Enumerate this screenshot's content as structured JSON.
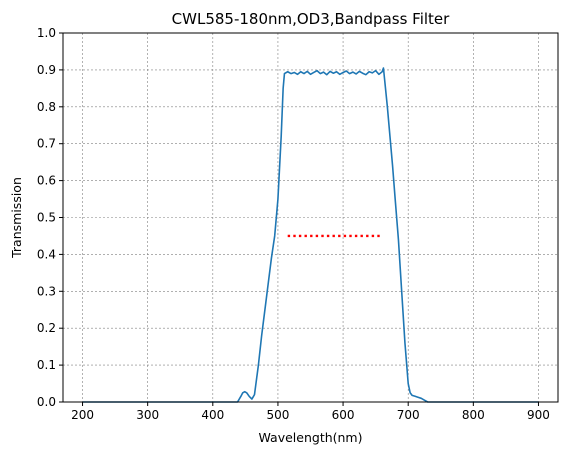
{
  "chart_data": {
    "type": "line",
    "title": "CWL585-180nm,OD3,Bandpass Filter",
    "xlabel": "Wavelength(nm)",
    "ylabel": "Transmission",
    "xlim": [
      170,
      930
    ],
    "ylim": [
      0,
      1.0
    ],
    "xticks": [
      200,
      300,
      400,
      500,
      600,
      700,
      800,
      900
    ],
    "yticks": [
      0,
      0.1,
      0.2,
      0.3,
      0.4,
      0.5,
      0.6,
      0.7,
      0.8,
      0.9,
      1.0
    ],
    "grid": true,
    "legend": "none",
    "series": [
      {
        "color": "#1f77b4",
        "line_style": "solid",
        "x": [
          200,
          300,
          400,
          438,
          443,
          446,
          449,
          452,
          456,
          460,
          464,
          467,
          470,
          475,
          480,
          485,
          490,
          495,
          500,
          505,
          508,
          510,
          515,
          520,
          525,
          530,
          535,
          540,
          545,
          550,
          555,
          560,
          565,
          570,
          575,
          580,
          585,
          590,
          595,
          600,
          605,
          610,
          615,
          620,
          625,
          630,
          635,
          640,
          645,
          650,
          655,
          660,
          662,
          664,
          668,
          672,
          676,
          680,
          685,
          690,
          695,
          700,
          703,
          706,
          710,
          715,
          720,
          725,
          730,
          735,
          750,
          800,
          900
        ],
        "y": [
          0.0,
          0.0,
          0.0,
          0.0,
          0.015,
          0.025,
          0.028,
          0.025,
          0.015,
          0.008,
          0.02,
          0.06,
          0.1,
          0.18,
          0.25,
          0.32,
          0.39,
          0.45,
          0.55,
          0.72,
          0.85,
          0.89,
          0.895,
          0.89,
          0.893,
          0.888,
          0.895,
          0.89,
          0.896,
          0.888,
          0.893,
          0.898,
          0.89,
          0.894,
          0.887,
          0.896,
          0.891,
          0.895,
          0.888,
          0.893,
          0.897,
          0.89,
          0.894,
          0.889,
          0.896,
          0.891,
          0.887,
          0.895,
          0.892,
          0.898,
          0.888,
          0.895,
          0.905,
          0.87,
          0.8,
          0.72,
          0.64,
          0.55,
          0.44,
          0.3,
          0.16,
          0.05,
          0.025,
          0.018,
          0.016,
          0.013,
          0.01,
          0.005,
          0.0,
          0.0,
          0.0,
          0.0,
          0.0
        ]
      },
      {
        "color": "#ff0000",
        "line_style": "dotted",
        "x": [
          515,
          660
        ],
        "y": [
          0.45,
          0.45
        ]
      }
    ]
  }
}
